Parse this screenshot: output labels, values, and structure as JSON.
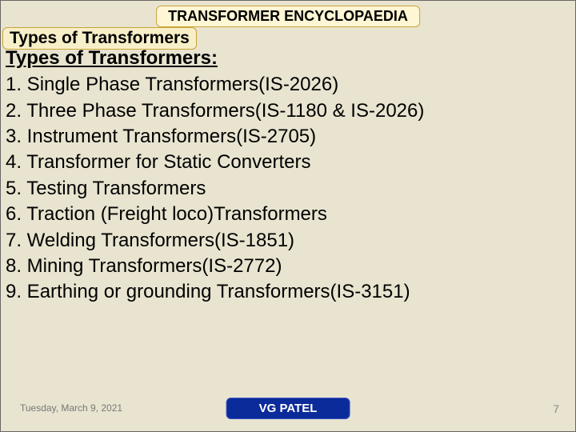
{
  "colors": {
    "slide_bg": "#e8e4d0",
    "badge_bg": "#fef6d4",
    "badge_border": "#c9a33b",
    "subtitle_bg": "#f7efc7",
    "author_bg": "#0b2b9b",
    "author_border": "#3a55c0",
    "muted_text": "#888"
  },
  "typography": {
    "title_fontsize": 18,
    "subtitle_fontsize": 21,
    "body_fontsize": 24,
    "footer_date_fontsize": 12,
    "footer_author_fontsize": 15,
    "footer_page_fontsize": 14
  },
  "header": {
    "title": "TRANSFORMER ENCYCLOPAEDIA",
    "subtitle": "Types of Transformers"
  },
  "section": {
    "heading": "Types of Transformers:",
    "items": [
      "1. Single Phase Transformers(IS-2026)",
      "2. Three Phase Transformers(IS-1180 & IS-2026)",
      "3. Instrument Transformers(IS-2705)",
      "4. Transformer for Static Converters",
      "5. Testing Transformers",
      "6. Traction (Freight loco)Transformers",
      "7. Welding Transformers(IS-1851)",
      "8. Mining Transformers(IS-2772)",
      "9. Earthing or grounding Transformers(IS-3151)"
    ]
  },
  "footer": {
    "date": "Tuesday, March 9, 2021",
    "author": "VG PATEL",
    "page": "7"
  }
}
